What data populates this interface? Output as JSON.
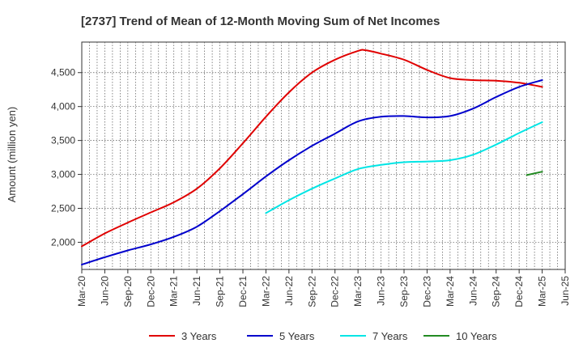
{
  "chart_data": {
    "type": "line",
    "title": "[2737]  Trend of Mean of 12-Month Moving Sum of Net Incomes",
    "xlabel": "",
    "ylabel": "Amount (million yen)",
    "ylim": [
      1600,
      4950
    ],
    "yticks": [
      2000,
      2500,
      3000,
      3500,
      4000,
      4500
    ],
    "ytick_labels": [
      "2,000",
      "2,500",
      "3,000",
      "3,500",
      "4,000",
      "4,500"
    ],
    "x_start": "Mar-20",
    "x_months": 63,
    "xticks": [
      "Mar-20",
      "Jun-20",
      "Sep-20",
      "Dec-20",
      "Mar-21",
      "Jun-21",
      "Sep-21",
      "Dec-21",
      "Mar-22",
      "Jun-22",
      "Sep-22",
      "Dec-22",
      "Mar-23",
      "Jun-23",
      "Sep-23",
      "Dec-23",
      "Mar-24",
      "Jun-24",
      "Sep-24",
      "Dec-24",
      "Mar-25",
      "Jun-25"
    ],
    "grid": true,
    "legend_position": "bottom",
    "series": [
      {
        "name": "3 Years",
        "color": "#e00000",
        "x": [
          "Mar-20",
          "Jun-20",
          "Sep-20",
          "Dec-20",
          "Mar-21",
          "Jun-21",
          "Sep-21",
          "Dec-21",
          "Mar-22",
          "Jun-22",
          "Sep-22",
          "Dec-22",
          "Mar-23",
          "Apr-23",
          "Jun-23",
          "Sep-23",
          "Dec-23",
          "Mar-24",
          "Jun-24",
          "Sep-24",
          "Dec-24",
          "Mar-25"
        ],
        "values": [
          1940,
          2130,
          2290,
          2440,
          2590,
          2790,
          3090,
          3460,
          3850,
          4210,
          4500,
          4690,
          4820,
          4830,
          4780,
          4690,
          4540,
          4420,
          4390,
          4380,
          4350,
          4290
        ]
      },
      {
        "name": "5 Years",
        "color": "#0000cc",
        "x": [
          "Mar-20",
          "Jun-20",
          "Sep-20",
          "Dec-20",
          "Mar-21",
          "Jun-21",
          "Sep-21",
          "Dec-21",
          "Mar-22",
          "Jun-22",
          "Sep-22",
          "Dec-22",
          "Mar-23",
          "Jun-23",
          "Sep-23",
          "Dec-23",
          "Mar-24",
          "Jun-24",
          "Sep-24",
          "Dec-24",
          "Mar-25"
        ],
        "values": [
          1670,
          1780,
          1880,
          1970,
          2080,
          2230,
          2460,
          2710,
          2970,
          3210,
          3420,
          3600,
          3780,
          3850,
          3860,
          3840,
          3860,
          3970,
          4140,
          4290,
          4390
        ]
      },
      {
        "name": "7 Years",
        "color": "#00e5e5",
        "x": [
          "Mar-22",
          "Jun-22",
          "Sep-22",
          "Dec-22",
          "Mar-23",
          "Jun-23",
          "Sep-23",
          "Dec-23",
          "Mar-24",
          "Jun-24",
          "Sep-24",
          "Dec-24",
          "Mar-25"
        ],
        "values": [
          2430,
          2620,
          2790,
          2940,
          3080,
          3140,
          3180,
          3190,
          3210,
          3290,
          3440,
          3610,
          3770
        ]
      },
      {
        "name": "10 Years",
        "color": "#228b22",
        "x": [
          "Jan-25",
          "Mar-25"
        ],
        "values": [
          2990,
          3040
        ]
      }
    ]
  }
}
